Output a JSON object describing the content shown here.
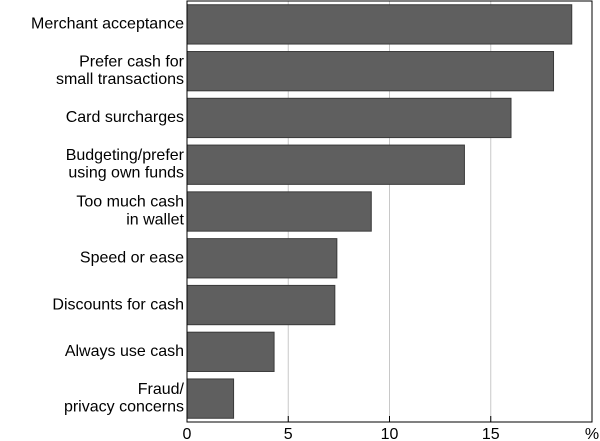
{
  "chart_data": {
    "type": "bar",
    "orientation": "horizontal",
    "categories": [
      "Merchant acceptance",
      "Prefer cash for\nsmall transactions",
      "Card surcharges",
      "Budgeting/prefer\nusing own funds",
      "Too much cash\nin wallet",
      "Speed or ease",
      "Discounts for cash",
      "Always use cash",
      "Fraud/\nprivacy concerns"
    ],
    "values": [
      19.0,
      18.1,
      16.0,
      13.7,
      9.1,
      7.4,
      7.3,
      4.3,
      2.3
    ],
    "color": "#5f5f5f",
    "xlim": [
      0,
      20
    ],
    "xticks": [
      0,
      5,
      10,
      15,
      {
        "value": 20,
        "label": "%"
      }
    ],
    "grid": true
  }
}
